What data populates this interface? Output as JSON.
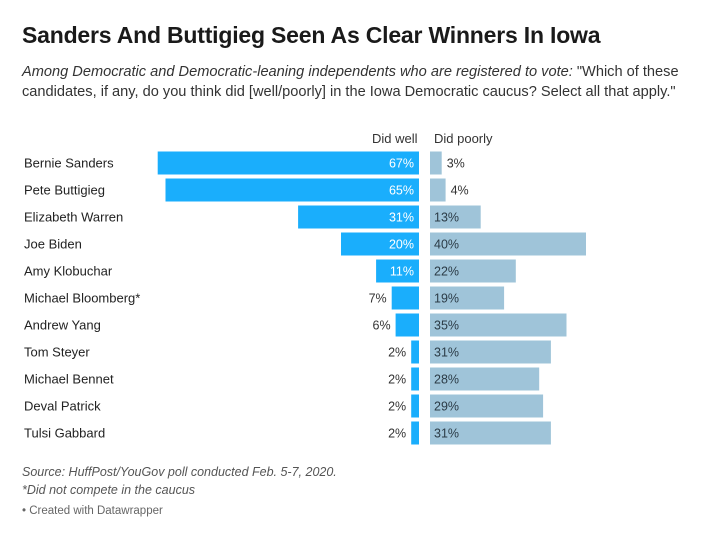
{
  "title": "Sanders And Buttigieg Seen As Clear Winners In Iowa",
  "subtitle_lead": "Among Democratic and Democratic-leaning independents who are registered to vote:",
  "subtitle_rest": " \"Which of these candidates, if any, do you think did [well/poorly] in the Iowa Democratic caucus? Select all that apply.\"",
  "footer": {
    "source": "Source: HuffPost/YouGov poll conducted Feb. 5-7, 2020.",
    "note": "*Did not compete in the caucus",
    "credit": "• Created with Datawrapper"
  },
  "colors": {
    "well": "#1aaefc",
    "poorly": "#9fc4d9"
  },
  "chart_data": {
    "type": "bar",
    "categories": [
      "Bernie Sanders",
      "Pete Buttigieg",
      "Elizabeth Warren",
      "Joe Biden",
      "Amy Klobuchar",
      "Michael Bloomberg*",
      "Andrew Yang",
      "Tom Steyer",
      "Michael Bennet",
      "Deval Patrick",
      "Tulsi Gabbard"
    ],
    "series": [
      {
        "name": "Did well",
        "values": [
          67,
          65,
          31,
          20,
          11,
          7,
          6,
          2,
          2,
          2,
          2
        ]
      },
      {
        "name": "Did poorly",
        "values": [
          3,
          4,
          13,
          40,
          22,
          19,
          35,
          31,
          28,
          29,
          31
        ]
      }
    ],
    "unit": "%",
    "orientation": "horizontal-diverging"
  }
}
